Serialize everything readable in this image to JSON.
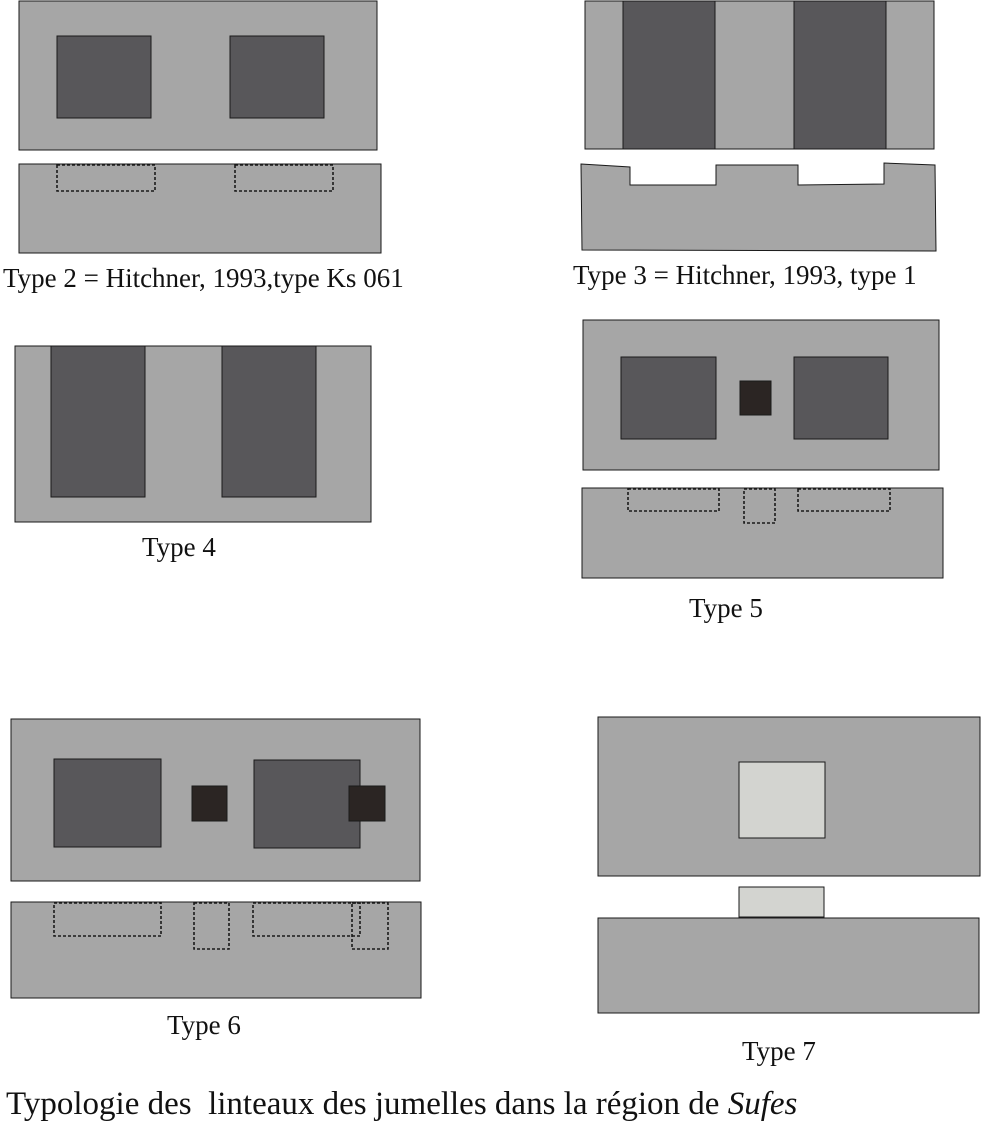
{
  "labels": {
    "type2": "Type 2 = Hitchner, 1993,type Ks 061",
    "type3": "Type 3 = Hitchner, 1993, type 1",
    "type4": "Type 4",
    "type5": "Type 5",
    "type6": "Type 6",
    "type7": "Type 7"
  },
  "caption": {
    "text": "Typologie des  linteaux des jumelles dans la région de ",
    "place": "Sufes"
  },
  "colors": {
    "stone": "#a6a6a6",
    "socket": "#58575a",
    "peg": "#2b2523",
    "tenon": "#d3d4d0"
  }
}
